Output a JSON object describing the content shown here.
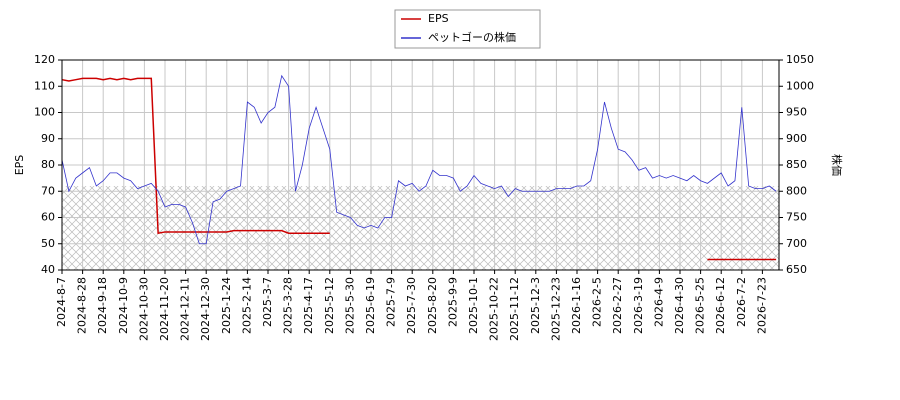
{
  "chart_data": {
    "type": "line",
    "y_label": "EPS",
    "y2_label": "株価",
    "categories": [
      "2024-8-7",
      null,
      null,
      "2024-8-28",
      null,
      null,
      "2024-9-18",
      null,
      null,
      "2024-10-9",
      null,
      null,
      "2024-10-30",
      null,
      null,
      "2024-11-20",
      null,
      null,
      "2024-12-11",
      null,
      null,
      "2024-12-30",
      null,
      null,
      "2025-1-24",
      null,
      null,
      "2025-2-14",
      null,
      null,
      "2025-3-7",
      null,
      null,
      "2025-3-28",
      null,
      null,
      "2025-4-17",
      null,
      null,
      "2025-5-12",
      null,
      null,
      "2025-5-30",
      null,
      null,
      "2025-6-19",
      null,
      null,
      "2025-7-9",
      null,
      null,
      "2025-7-30",
      null,
      null,
      "2025-8-20",
      null,
      null,
      "2025-9-9",
      null,
      null,
      "2025-10-1",
      null,
      null,
      "2025-10-22",
      null,
      null,
      "2025-11-12",
      null,
      null,
      "2025-12-3",
      null,
      null,
      "2025-12-23",
      null,
      null,
      "2026-1-16",
      null,
      null,
      "2026-2-5",
      null,
      null,
      "2026-2-27",
      null,
      null,
      "2026-3-19",
      null,
      null,
      "2026-4-9",
      null,
      null,
      "2026-4-30",
      null,
      null,
      "2026-5-25",
      null,
      null,
      "2026-6-12",
      null,
      null,
      "2026-7-2",
      null,
      null,
      "2026-7-23",
      null,
      null
    ],
    "series": [
      {
        "name": "EPS",
        "color": "#cc0000",
        "axis": "y",
        "values": [
          112.5,
          112,
          112.5,
          113,
          113,
          113,
          112.5,
          113,
          112.5,
          113,
          112.5,
          113,
          113,
          113,
          54,
          54.5,
          54.5,
          54.5,
          54.5,
          54.5,
          54.5,
          54.5,
          54.5,
          54.5,
          54.5,
          55,
          55,
          55,
          55,
          55,
          55,
          55,
          55,
          54,
          54,
          54,
          54,
          54,
          54,
          54,
          null,
          null,
          null,
          null,
          null,
          null,
          null,
          null,
          null,
          null,
          null,
          null,
          null,
          null,
          null,
          null,
          null,
          null,
          null,
          null,
          null,
          null,
          null,
          null,
          null,
          null,
          null,
          null,
          null,
          null,
          null,
          null,
          null,
          null,
          null,
          null,
          null,
          null,
          null,
          null,
          null,
          null,
          null,
          null,
          null,
          null,
          null,
          null,
          null,
          null,
          null,
          null,
          null,
          null,
          44,
          44,
          44,
          44,
          44,
          44,
          44,
          44,
          44,
          44,
          44
        ]
      },
      {
        "name": "ペットゴーの株価",
        "color": "#3333cc",
        "axis": "y2",
        "values": [
          860,
          800,
          825,
          835,
          845,
          810,
          820,
          835,
          835,
          825,
          820,
          805,
          810,
          815,
          800,
          770,
          775,
          775,
          770,
          740,
          700,
          700,
          780,
          785,
          800,
          805,
          810,
          970,
          960,
          930,
          950,
          960,
          1020,
          1000,
          800,
          850,
          920,
          960,
          920,
          880,
          760,
          755,
          750,
          735,
          730,
          735,
          730,
          750,
          750,
          820,
          810,
          815,
          800,
          810,
          840,
          830,
          830,
          825,
          800,
          810,
          830,
          815,
          810,
          805,
          810,
          790,
          805,
          800,
          800,
          800,
          800,
          800,
          805,
          805,
          805,
          810,
          810,
          820,
          880,
          970,
          920,
          880,
          875,
          860,
          840,
          845,
          825,
          830,
          825,
          830,
          825,
          820,
          830,
          820,
          815,
          825,
          835,
          810,
          820,
          960,
          810,
          805,
          805,
          810,
          800
        ]
      }
    ],
    "ylim": [
      40,
      120
    ],
    "yticks": [
      40,
      50,
      60,
      70,
      80,
      90,
      100,
      110,
      120
    ],
    "y2lim": [
      650,
      1050
    ],
    "y2ticks": [
      650,
      700,
      750,
      800,
      850,
      900,
      950,
      1000,
      1050
    ],
    "grid": true
  }
}
